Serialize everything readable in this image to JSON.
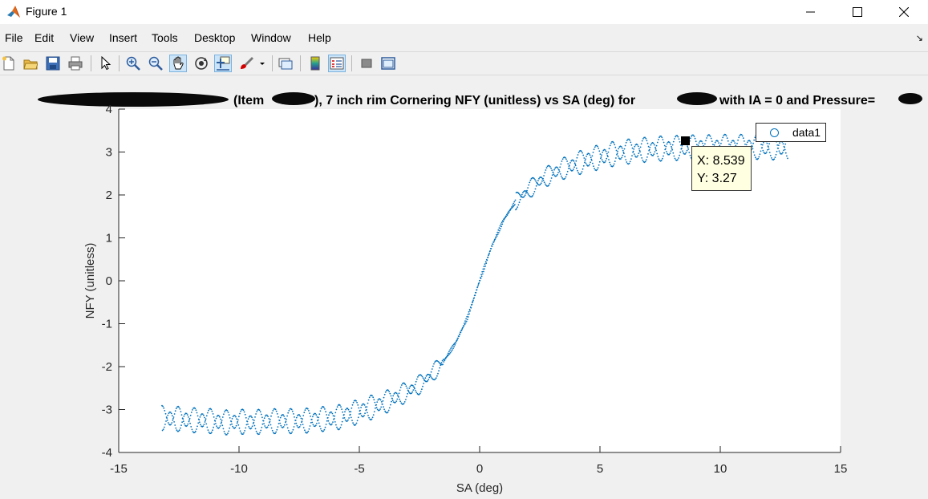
{
  "window": {
    "title": "Figure 1",
    "icon": "matlab-icon",
    "controls": [
      "minimize-icon",
      "maximize-icon",
      "close-icon"
    ]
  },
  "menu": [
    "File",
    "Edit",
    "View",
    "Insert",
    "Tools",
    "Desktop",
    "Window",
    "Help"
  ],
  "toolbar": [
    "new-figure-icon",
    "open-icon",
    "save-icon",
    "print-icon",
    "pointer-icon",
    "zoom-in-icon",
    "zoom-out-icon",
    "pan-icon",
    "rotate-3d-icon",
    "data-cursor-icon",
    "brush-icon",
    "link-plot-icon",
    "colorbar-icon",
    "legend-icon",
    "hide-plot-tools-icon",
    "show-plot-tools-icon"
  ],
  "figure": {
    "title": "(Item ), 7 inch rim Cornering NFY (unitless) vs SA (deg) for with IA = 0 and Pressure=",
    "title_parts": {
      "a": "(Item",
      "b": "), 7 inch rim Cornering NFY (unitless) vs SA (deg) for",
      "c": "with IA = 0 and Pressure="
    },
    "legend": {
      "label": "data1"
    },
    "datatip": {
      "x_text": "X: 8.539",
      "y_text": "Y: 3.27"
    }
  },
  "chart_data": {
    "type": "scatter",
    "xlabel": "SA (deg)",
    "ylabel": "NFY (unitless)",
    "xlim": [
      -15,
      15
    ],
    "ylim": [
      -4,
      4
    ],
    "xticks": [
      "-15",
      "-10",
      "-5",
      "0",
      "5",
      "10",
      "15"
    ],
    "yticks": [
      "-4",
      "-3",
      "-2",
      "-1",
      "0",
      "1",
      "2",
      "3",
      "4"
    ],
    "grid": false,
    "legend_position": "top-right",
    "marker_color": "#0072bd",
    "series": [
      {
        "name": "data1",
        "x": [
          -13.2,
          -12.5,
          -12,
          -11.5,
          -11,
          -10.5,
          -10,
          -9.5,
          -9,
          -8.5,
          -8,
          -7.5,
          -7,
          -6.5,
          -6,
          -5.5,
          -5,
          -4.5,
          -4,
          -3.5,
          -3,
          -2.5,
          -2,
          -1.5,
          -1,
          -0.5,
          0,
          0.5,
          1,
          1.5,
          2,
          2.5,
          3,
          3.5,
          4,
          4.5,
          5,
          5.5,
          6,
          6.5,
          7,
          7.5,
          8,
          8.539,
          9,
          9.5,
          10,
          10.5,
          11,
          11.5,
          12,
          12.8
        ],
        "y": [
          -3.2,
          -3.22,
          -3.25,
          -3.25,
          -3.28,
          -3.3,
          -3.28,
          -3.3,
          -3.28,
          -3.27,
          -3.27,
          -3.27,
          -3.25,
          -3.22,
          -3.2,
          -3.12,
          -3.05,
          -2.95,
          -2.85,
          -2.72,
          -2.58,
          -2.42,
          -2.18,
          -1.88,
          -1.45,
          -0.85,
          0.0,
          0.8,
          1.42,
          1.85,
          2.1,
          2.32,
          2.5,
          2.62,
          2.72,
          2.82,
          2.88,
          2.95,
          3.0,
          3.03,
          3.06,
          3.08,
          3.09,
          3.27,
          3.11,
          3.11,
          3.12,
          3.12,
          3.12,
          3.12,
          3.11,
          3.1
        ]
      }
    ],
    "annotation": {
      "x": 8.539,
      "y": 3.27
    }
  }
}
